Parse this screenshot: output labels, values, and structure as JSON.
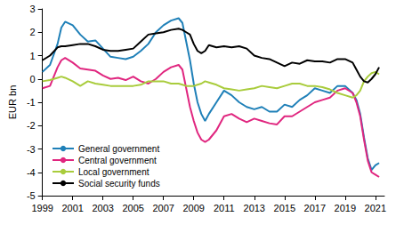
{
  "chart_data": {
    "type": "line",
    "y_label": "EUR bn",
    "x": [
      1999,
      1999.5,
      2000,
      2000.25,
      2000.5,
      2001,
      2001.5,
      2002,
      2002.5,
      2003,
      2003.5,
      2004,
      2004.5,
      2005,
      2005.5,
      2006,
      2006.5,
      2007,
      2007.5,
      2008,
      2008.25,
      2008.5,
      2008.75,
      2009,
      2009.25,
      2009.5,
      2009.75,
      2010,
      2010.5,
      2011,
      2011.5,
      2012,
      2012.5,
      2013,
      2013.5,
      2014,
      2014.5,
      2015,
      2015.5,
      2016,
      2016.5,
      2017,
      2017.5,
      2018,
      2018.5,
      2019,
      2019.5,
      2019.75,
      2020,
      2020.25,
      2020.5,
      2020.75,
      2021,
      2021.25
    ],
    "series": [
      {
        "name": "General government",
        "color": "#1f80b8",
        "values": [
          0.3,
          0.6,
          1.5,
          2.2,
          2.45,
          2.3,
          1.9,
          1.6,
          1.65,
          1.3,
          0.95,
          0.9,
          0.85,
          0.95,
          1.2,
          1.5,
          2.0,
          2.3,
          2.5,
          2.6,
          2.4,
          1.6,
          0.8,
          -0.2,
          -1.0,
          -1.5,
          -1.8,
          -1.5,
          -1.0,
          -0.5,
          -0.7,
          -1.0,
          -1.2,
          -1.3,
          -1.2,
          -1.4,
          -1.4,
          -1.1,
          -1.2,
          -0.9,
          -0.7,
          -0.4,
          -0.5,
          -0.6,
          -0.3,
          -0.3,
          -0.6,
          -0.9,
          -1.5,
          -2.5,
          -3.4,
          -3.9,
          -3.7,
          -3.6
        ]
      },
      {
        "name": "Central government",
        "color": "#e0267f",
        "values": [
          -0.4,
          -0.3,
          0.5,
          0.8,
          0.9,
          0.7,
          0.45,
          0.4,
          0.35,
          0.15,
          0.0,
          0.05,
          -0.05,
          0.1,
          -0.1,
          -0.2,
          0.0,
          0.3,
          0.5,
          0.6,
          0.4,
          -0.4,
          -1.2,
          -1.8,
          -2.3,
          -2.6,
          -2.7,
          -2.6,
          -2.2,
          -1.6,
          -1.5,
          -1.7,
          -1.85,
          -1.7,
          -1.8,
          -1.9,
          -1.95,
          -1.6,
          -1.6,
          -1.4,
          -1.2,
          -1.0,
          -0.9,
          -0.8,
          -0.5,
          -0.4,
          -0.6,
          -1.0,
          -1.6,
          -2.6,
          -3.5,
          -4.0,
          -4.1,
          -4.2
        ]
      },
      {
        "name": "Local government",
        "color": "#a9cc3c",
        "values": [
          -0.1,
          -0.05,
          0.05,
          0.1,
          0.05,
          -0.1,
          -0.3,
          -0.1,
          -0.2,
          -0.25,
          -0.3,
          -0.3,
          -0.3,
          -0.3,
          -0.25,
          -0.1,
          -0.1,
          -0.1,
          -0.2,
          -0.2,
          -0.25,
          -0.3,
          -0.3,
          -0.3,
          -0.25,
          -0.2,
          -0.1,
          -0.15,
          -0.25,
          -0.4,
          -0.45,
          -0.5,
          -0.45,
          -0.4,
          -0.3,
          -0.35,
          -0.4,
          -0.3,
          -0.2,
          -0.2,
          -0.3,
          -0.3,
          -0.35,
          -0.45,
          -0.6,
          -0.7,
          -0.8,
          -0.7,
          -0.5,
          -0.1,
          0.1,
          0.25,
          0.3,
          0.2
        ]
      },
      {
        "name": "Social security funds",
        "color": "#000000",
        "values": [
          0.8,
          1.0,
          1.35,
          1.4,
          1.4,
          1.45,
          1.5,
          1.5,
          1.4,
          1.25,
          1.2,
          1.2,
          1.25,
          1.3,
          1.6,
          1.9,
          1.95,
          2.0,
          2.1,
          2.15,
          2.1,
          2.0,
          1.9,
          1.5,
          1.2,
          1.1,
          1.2,
          1.45,
          1.35,
          1.4,
          1.35,
          1.4,
          1.3,
          1.0,
          0.9,
          0.85,
          0.7,
          0.55,
          0.7,
          0.65,
          0.8,
          0.75,
          0.75,
          0.7,
          0.85,
          0.85,
          0.7,
          0.4,
          0.1,
          -0.1,
          -0.15,
          0.0,
          0.2,
          0.5
        ]
      }
    ],
    "xlim": [
      1999,
      2021.6
    ],
    "xticks": [
      1999,
      2001,
      2003,
      2005,
      2007,
      2009,
      2011,
      2013,
      2015,
      2017,
      2019,
      2021
    ],
    "ylim": [
      -5,
      3
    ],
    "yticks": [
      -5,
      -4,
      -3,
      -2,
      -1,
      0,
      1,
      2,
      3
    ],
    "grid": false,
    "legend": "lower left",
    "marker": "none",
    "line_style": "solid"
  }
}
